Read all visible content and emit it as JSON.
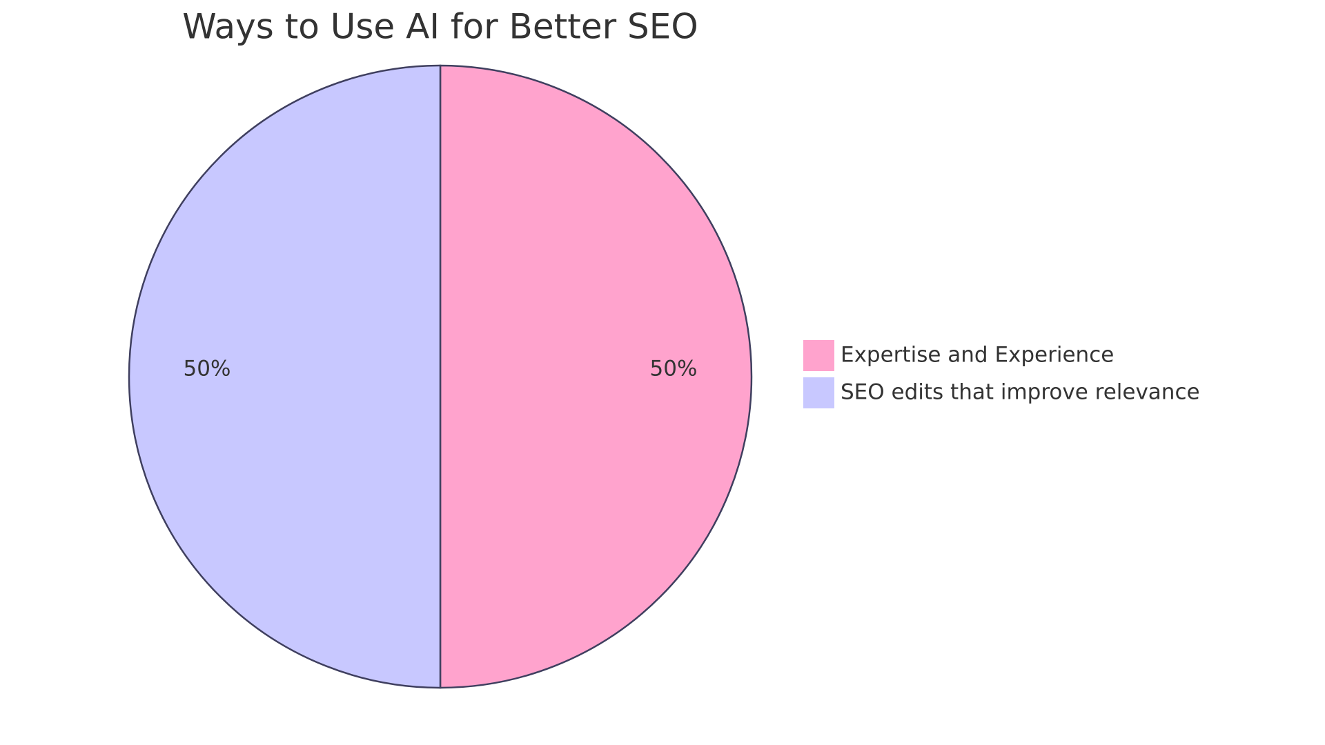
{
  "chart_data": {
    "type": "pie",
    "title": "Ways to Use AI for Better SEO",
    "categories": [
      "Expertise and Experience",
      "SEO edits that improve relevance"
    ],
    "values": [
      50,
      50
    ],
    "value_labels": [
      "50%",
      "50%"
    ],
    "colors": [
      "#ffa3cd",
      "#c8c8ff"
    ],
    "legend": "right"
  }
}
